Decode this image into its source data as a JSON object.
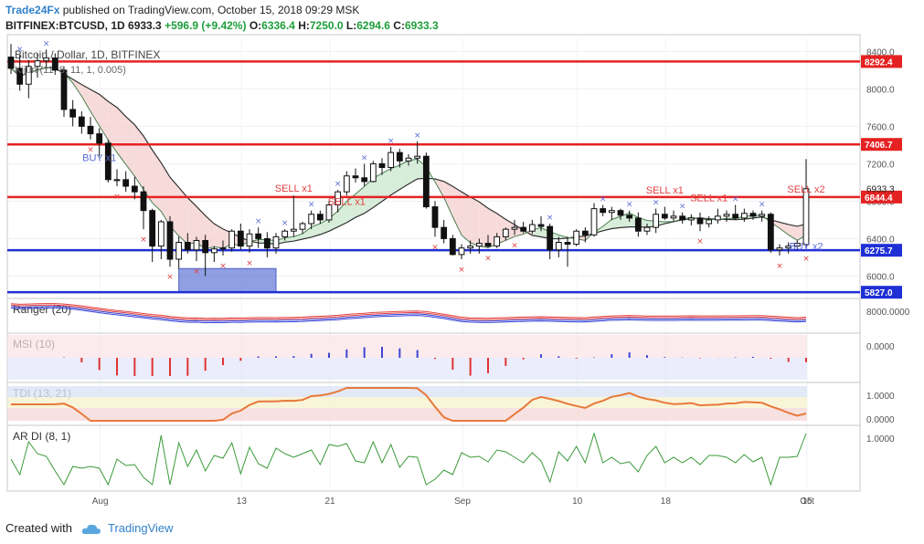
{
  "header": {
    "publisher": "Trade24Fx",
    "published_text": "published on TradingView.com, October 15, 2018 09:29 MSK",
    "symbol": "BITFINEX:BTCUSD, 1D",
    "last": "6933.3",
    "change": "+596.9 (+9.42%)",
    "open_label": "O:",
    "open": "6336.4",
    "high_label": "H:",
    "high": "7250.0",
    "low_label": "L:",
    "low": "6294.6",
    "close_label": "C:",
    "close": "6933.3"
  },
  "chart_data": {
    "type": "candlestick",
    "title": "Bitcoin / Dollar, 1D, BITFINEX",
    "overlay_legend": "Kijun (11, 8, 11, 1, 0.005)",
    "price_axis": {
      "ticks": [
        6000,
        6400,
        6800,
        7200,
        7600,
        8000,
        8400
      ],
      "range": [
        5780,
        8540
      ]
    },
    "x_labels": [
      "Aug",
      "13",
      "21",
      "Sep",
      "10",
      "18",
      "Oct",
      "15"
    ],
    "current_price_label": "6933.3",
    "horizontal_levels": [
      {
        "value": 8292.4,
        "label": "8292.4",
        "color": "#e52222"
      },
      {
        "value": 7406.7,
        "label": "7406.7",
        "color": "#e52222"
      },
      {
        "value": 6844.4,
        "label": "6844.4",
        "color": "#e52222"
      },
      {
        "value": 6275.7,
        "label": "6275.7",
        "color": "#1f2fd6"
      },
      {
        "value": 5827.0,
        "label": "5827.0",
        "color": "#1f2fd6"
      }
    ],
    "highlight_box": {
      "from_price": 5827,
      "to_price": 6080,
      "color": "#6b7fd8"
    },
    "candles": [
      [
        8340,
        8480,
        8160,
        8220
      ],
      [
        8220,
        8360,
        7980,
        8050
      ],
      [
        8050,
        8310,
        7900,
        8240
      ],
      [
        8240,
        8380,
        8120,
        8300
      ],
      [
        8300,
        8420,
        8200,
        8330
      ],
      [
        8330,
        8380,
        8150,
        8200
      ],
      [
        8200,
        8240,
        7700,
        7780
      ],
      [
        7780,
        7880,
        7600,
        7700
      ],
      [
        7700,
        7760,
        7520,
        7600
      ],
      [
        7600,
        7700,
        7460,
        7520
      ],
      [
        7520,
        7580,
        7280,
        7420
      ],
      [
        7420,
        7460,
        7000,
        7030
      ],
      [
        7030,
        7140,
        6960,
        7030
      ],
      [
        7030,
        7120,
        6900,
        6960
      ],
      [
        6960,
        7060,
        6820,
        6900
      ],
      [
        6900,
        6960,
        6500,
        6700
      ],
      [
        6700,
        6720,
        6150,
        6320
      ],
      [
        6320,
        6600,
        6180,
        6580
      ],
      [
        6580,
        6640,
        6100,
        6180
      ],
      [
        6180,
        6420,
        6080,
        6360
      ],
      [
        6360,
        6460,
        6240,
        6280
      ],
      [
        6280,
        6420,
        6160,
        6380
      ],
      [
        6380,
        6440,
        6000,
        6250
      ],
      [
        6250,
        6320,
        6150,
        6290
      ],
      [
        6290,
        6380,
        6220,
        6300
      ],
      [
        6300,
        6500,
        6260,
        6480
      ],
      [
        6480,
        6560,
        6280,
        6320
      ],
      [
        6320,
        6500,
        6250,
        6450
      ],
      [
        6450,
        6520,
        6300,
        6400
      ],
      [
        6400,
        6470,
        6200,
        6300
      ],
      [
        6300,
        6460,
        6240,
        6420
      ],
      [
        6420,
        6500,
        6380,
        6480
      ],
      [
        6480,
        6860,
        6420,
        6500
      ],
      [
        6500,
        6580,
        6450,
        6560
      ],
      [
        6560,
        6700,
        6500,
        6660
      ],
      [
        6660,
        6700,
        6560,
        6600
      ],
      [
        6600,
        6800,
        6570,
        6760
      ],
      [
        6760,
        6920,
        6680,
        6900
      ],
      [
        6900,
        7120,
        6860,
        7070
      ],
      [
        7070,
        7150,
        7000,
        7050
      ],
      [
        7050,
        7200,
        6960,
        7010
      ],
      [
        7010,
        7230,
        7000,
        7200
      ],
      [
        7200,
        7260,
        7080,
        7160
      ],
      [
        7160,
        7380,
        7120,
        7320
      ],
      [
        7320,
        7360,
        7160,
        7230
      ],
      [
        7230,
        7300,
        7180,
        7260
      ],
      [
        7260,
        7440,
        7200,
        7280
      ],
      [
        7280,
        7320,
        6720,
        6740
      ],
      [
        6740,
        6800,
        6420,
        6520
      ],
      [
        6520,
        6600,
        6350,
        6400
      ],
      [
        6400,
        6440,
        6220,
        6230
      ],
      [
        6230,
        6340,
        6180,
        6300
      ],
      [
        6300,
        6380,
        6240,
        6320
      ],
      [
        6320,
        6400,
        6240,
        6350
      ],
      [
        6350,
        6440,
        6300,
        6320
      ],
      [
        6320,
        6460,
        6300,
        6420
      ],
      [
        6420,
        6520,
        6380,
        6500
      ],
      [
        6500,
        6600,
        6440,
        6520
      ],
      [
        6520,
        6580,
        6460,
        6480
      ],
      [
        6480,
        6600,
        6450,
        6550
      ],
      [
        6550,
        6640,
        6480,
        6530
      ],
      [
        6530,
        6560,
        6180,
        6280
      ],
      [
        6280,
        6420,
        6200,
        6360
      ],
      [
        6360,
        6420,
        6100,
        6340
      ],
      [
        6340,
        6500,
        6320,
        6480
      ],
      [
        6480,
        6520,
        6360,
        6440
      ],
      [
        6440,
        6780,
        6420,
        6720
      ],
      [
        6720,
        6760,
        6640,
        6680
      ],
      [
        6680,
        6740,
        6600,
        6700
      ],
      [
        6700,
        6720,
        6600,
        6650
      ],
      [
        6650,
        6700,
        6580,
        6620
      ],
      [
        6620,
        6680,
        6420,
        6480
      ],
      [
        6480,
        6560,
        6440,
        6520
      ],
      [
        6520,
        6720,
        6460,
        6660
      ],
      [
        6660,
        6740,
        6600,
        6620
      ],
      [
        6620,
        6700,
        6580,
        6640
      ],
      [
        6640,
        6680,
        6560,
        6600
      ],
      [
        6600,
        6660,
        6540,
        6620
      ],
      [
        6620,
        6680,
        6480,
        6560
      ],
      [
        6560,
        6640,
        6520,
        6600
      ],
      [
        6600,
        6720,
        6560,
        6640
      ],
      [
        6640,
        6700,
        6580,
        6660
      ],
      [
        6660,
        6760,
        6600,
        6620
      ],
      [
        6620,
        6720,
        6580,
        6670
      ],
      [
        6670,
        6700,
        6600,
        6640
      ],
      [
        6640,
        6700,
        6580,
        6660
      ],
      [
        6660,
        6680,
        6250,
        6280
      ],
      [
        6280,
        6340,
        6220,
        6300
      ],
      [
        6300,
        6360,
        6240,
        6320
      ],
      [
        6320,
        6380,
        6280,
        6350
      ],
      [
        6336.4,
        7250.0,
        6294.6,
        6933.3
      ]
    ],
    "markers": [
      {
        "text": "BUY x1",
        "index": 10,
        "price": 7230,
        "color": "#5b6bd6"
      },
      {
        "text": "SELL x1",
        "index": 32,
        "price": 6900,
        "color": "#e04040"
      },
      {
        "text": "SELL x1",
        "index": 38,
        "price": 6760,
        "color": "#e04040"
      },
      {
        "text": "SELL x1",
        "index": 74,
        "price": 6880,
        "color": "#e04040"
      },
      {
        "text": "SELL x1",
        "index": 79,
        "price": 6800,
        "color": "#e04040"
      },
      {
        "text": "BUY x2",
        "index": 97,
        "price": 6280,
        "color": "#5b6bd6"
      },
      {
        "text": "SELL x2",
        "index": 114,
        "price": 6890,
        "color": "#e04040"
      }
    ],
    "panes": [
      {
        "name": "Ranger (20)",
        "ticks": [
          "8000.0000"
        ]
      },
      {
        "name": "MSI (10)",
        "ticks": [
          "0.0000"
        ]
      },
      {
        "name": "TDI (13, 21)",
        "ticks": [
          "1.0000",
          "0.0000"
        ]
      },
      {
        "name": "AR DI (8, 1)",
        "ticks": [
          "1.0000"
        ]
      }
    ]
  },
  "footer": {
    "created_with": "Created with",
    "brand": "TradingView"
  }
}
